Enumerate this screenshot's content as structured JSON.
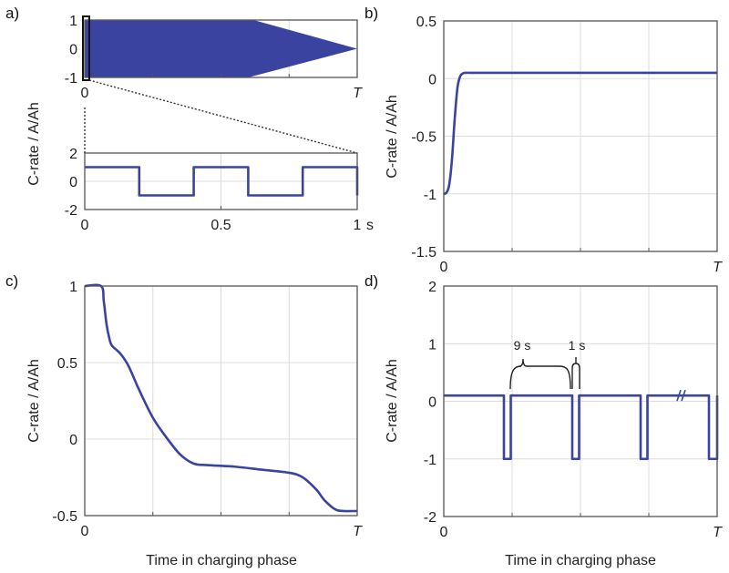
{
  "figure": {
    "line_color": "#3a43a0",
    "shared_ylabel": "C-rate / A/Ah",
    "shared_xlabel": "Time in charging phase"
  },
  "chart_data": [
    {
      "id": "a_top",
      "panel_label": "a)",
      "type": "area",
      "title": "",
      "xlabel": "",
      "ylabel": "C-rate / A/Ah",
      "xlim": [
        0,
        1
      ],
      "ylim": [
        -1,
        1
      ],
      "x_ticks": [
        "0",
        "T"
      ],
      "y_ticks": [
        "1",
        "0",
        "-1"
      ],
      "y_tick_values": [
        1,
        0,
        -1
      ],
      "description": "Envelope of high-frequency alternating current (±1 C) tapering to zero at T",
      "envelope": {
        "x": [
          0,
          0.6,
          0.62,
          1.0
        ],
        "upper": [
          1,
          1,
          1,
          0
        ],
        "lower": [
          -1,
          -1,
          -1,
          0
        ],
        "upper_knee": 0.62,
        "lower_knee": 0.6
      },
      "grid": true
    },
    {
      "id": "a_bottom",
      "panel_label": "",
      "type": "line",
      "title": "",
      "xlabel": "",
      "xunit": "s",
      "xlim": [
        0,
        1
      ],
      "ylim": [
        -2,
        2
      ],
      "x_ticks": [
        "0",
        "0.5",
        "1"
      ],
      "x_tick_values": [
        0,
        0.5,
        1
      ],
      "y_ticks": [
        "2",
        "0",
        "-2"
      ],
      "y_tick_values": [
        2,
        0,
        -2
      ],
      "series": [
        {
          "name": "zoomed square wave",
          "x": [
            0,
            0.2,
            0.2,
            0.4,
            0.4,
            0.6,
            0.6,
            0.8,
            0.8,
            1.0,
            1.0
          ],
          "y": [
            1,
            1,
            -1,
            -1,
            1,
            1,
            -1,
            -1,
            1,
            1,
            -1
          ]
        }
      ],
      "grid": true
    },
    {
      "id": "b",
      "panel_label": "b)",
      "type": "line",
      "title": "",
      "xlabel": "",
      "ylabel": "C-rate / A/Ah",
      "xlim": [
        0,
        1
      ],
      "ylim": [
        -1.5,
        0.5
      ],
      "x_ticks": [
        "0",
        "T"
      ],
      "y_ticks": [
        "0.5",
        "0",
        "-0.5",
        "-1",
        "-1.5"
      ],
      "y_tick_values": [
        0.5,
        0,
        -0.5,
        -1,
        -1.5
      ],
      "series": [
        {
          "name": "step response",
          "x": [
            0,
            0.01,
            0.02,
            0.03,
            0.04,
            0.05,
            0.06,
            0.07,
            0.08,
            0.1,
            0.2,
            0.5,
            1.0
          ],
          "y": [
            -1.0,
            -0.99,
            -0.92,
            -0.7,
            -0.35,
            -0.08,
            0.02,
            0.045,
            0.05,
            0.05,
            0.05,
            0.05,
            0.05
          ]
        }
      ],
      "grid": true
    },
    {
      "id": "c",
      "panel_label": "c)",
      "type": "line",
      "title": "",
      "xlabel": "Time in charging phase",
      "ylabel": "C-rate / A/Ah",
      "xlim": [
        0,
        1
      ],
      "ylim": [
        -0.5,
        1
      ],
      "x_ticks": [
        "0",
        "T"
      ],
      "y_ticks": [
        "1",
        "0.5",
        "0",
        "-0.5"
      ],
      "y_tick_values": [
        1,
        0.5,
        0,
        -0.5
      ],
      "series": [
        {
          "name": "decaying profile",
          "x": [
            0,
            0.06,
            0.07,
            0.08,
            0.09,
            0.1,
            0.13,
            0.16,
            0.2,
            0.25,
            0.3,
            0.35,
            0.4,
            0.45,
            0.55,
            0.65,
            0.75,
            0.8,
            0.85,
            0.88,
            0.92,
            0.95,
            1.0
          ],
          "y": [
            1.0,
            1.0,
            0.9,
            0.75,
            0.66,
            0.61,
            0.56,
            0.48,
            0.32,
            0.14,
            0.01,
            -0.1,
            -0.16,
            -0.17,
            -0.18,
            -0.2,
            -0.22,
            -0.25,
            -0.33,
            -0.4,
            -0.46,
            -0.47,
            -0.47
          ]
        }
      ],
      "grid": true
    },
    {
      "id": "d",
      "panel_label": "d)",
      "type": "line",
      "title": "",
      "xlabel": "Time in charging phase",
      "ylabel": "C-rate / A/Ah",
      "xlim": [
        0,
        1
      ],
      "ylim": [
        -2,
        2
      ],
      "x_ticks": [
        "0",
        "T"
      ],
      "y_ticks": [
        "2",
        "1",
        "0",
        "-1",
        "-2"
      ],
      "y_tick_values": [
        2,
        1,
        0,
        -1,
        -2
      ],
      "series": [
        {
          "name": "pulse profile",
          "x": [
            0,
            0.22,
            0.22,
            0.245,
            0.245,
            0.47,
            0.47,
            0.495,
            0.495,
            0.72,
            0.72,
            0.745,
            0.745,
            0.97,
            0.97,
            1.0,
            1.0
          ],
          "y": [
            0.1,
            0.1,
            -1,
            -1,
            0.1,
            0.1,
            -1,
            -1,
            0.1,
            0.1,
            -1,
            -1,
            0.1,
            0.1,
            -1,
            -1,
            0.1
          ]
        }
      ],
      "annotations": [
        "9 s",
        "1 s"
      ],
      "axis_break_at": 0.87,
      "grid": true
    }
  ]
}
